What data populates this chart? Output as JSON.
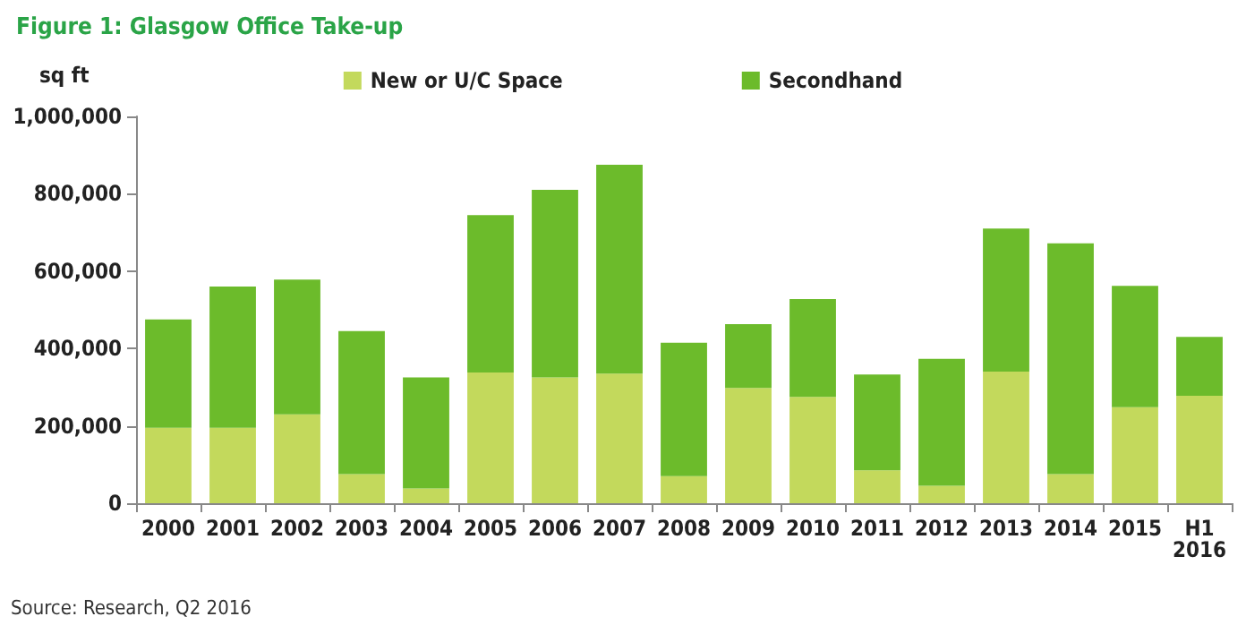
{
  "chart_data": {
    "type": "bar",
    "stacked": true,
    "title": "Figure 1: Glasgow Office Take-up",
    "ylabel": "sq ft",
    "categories": [
      "2000",
      "2001",
      "2002",
      "2003",
      "2004",
      "2005",
      "2006",
      "2007",
      "2008",
      "2009",
      "2010",
      "2011",
      "2012",
      "2013",
      "2014",
      "2015",
      "H1\n2016"
    ],
    "series": [
      {
        "name": "New or U/C Space",
        "color": "#c3d95c",
        "values": [
          195000,
          195000,
          230000,
          75000,
          38000,
          338000,
          325000,
          335000,
          70000,
          298000,
          275000,
          85000,
          45000,
          340000,
          75000,
          248000,
          278000
        ]
      },
      {
        "name": "Secondhand",
        "color": "#6cbb2b",
        "values": [
          280000,
          365000,
          348000,
          370000,
          287000,
          407000,
          485000,
          540000,
          345000,
          165000,
          253000,
          248000,
          328000,
          370000,
          597000,
          314000,
          152000
        ]
      }
    ],
    "ylim": [
      0,
      1000000
    ],
    "yticks": [
      0,
      {
        "value": 200000,
        "label": "200,000"
      },
      {
        "value": 400000,
        "label": "400,000"
      },
      {
        "value": 600000,
        "label": "600,000"
      },
      {
        "value": 800000,
        "label": "800,000"
      },
      {
        "value": 1000000,
        "label": "1,000,000"
      }
    ],
    "grid": false,
    "legend": "top",
    "annotations": [
      "Source: Research, Q2 2016"
    ]
  }
}
